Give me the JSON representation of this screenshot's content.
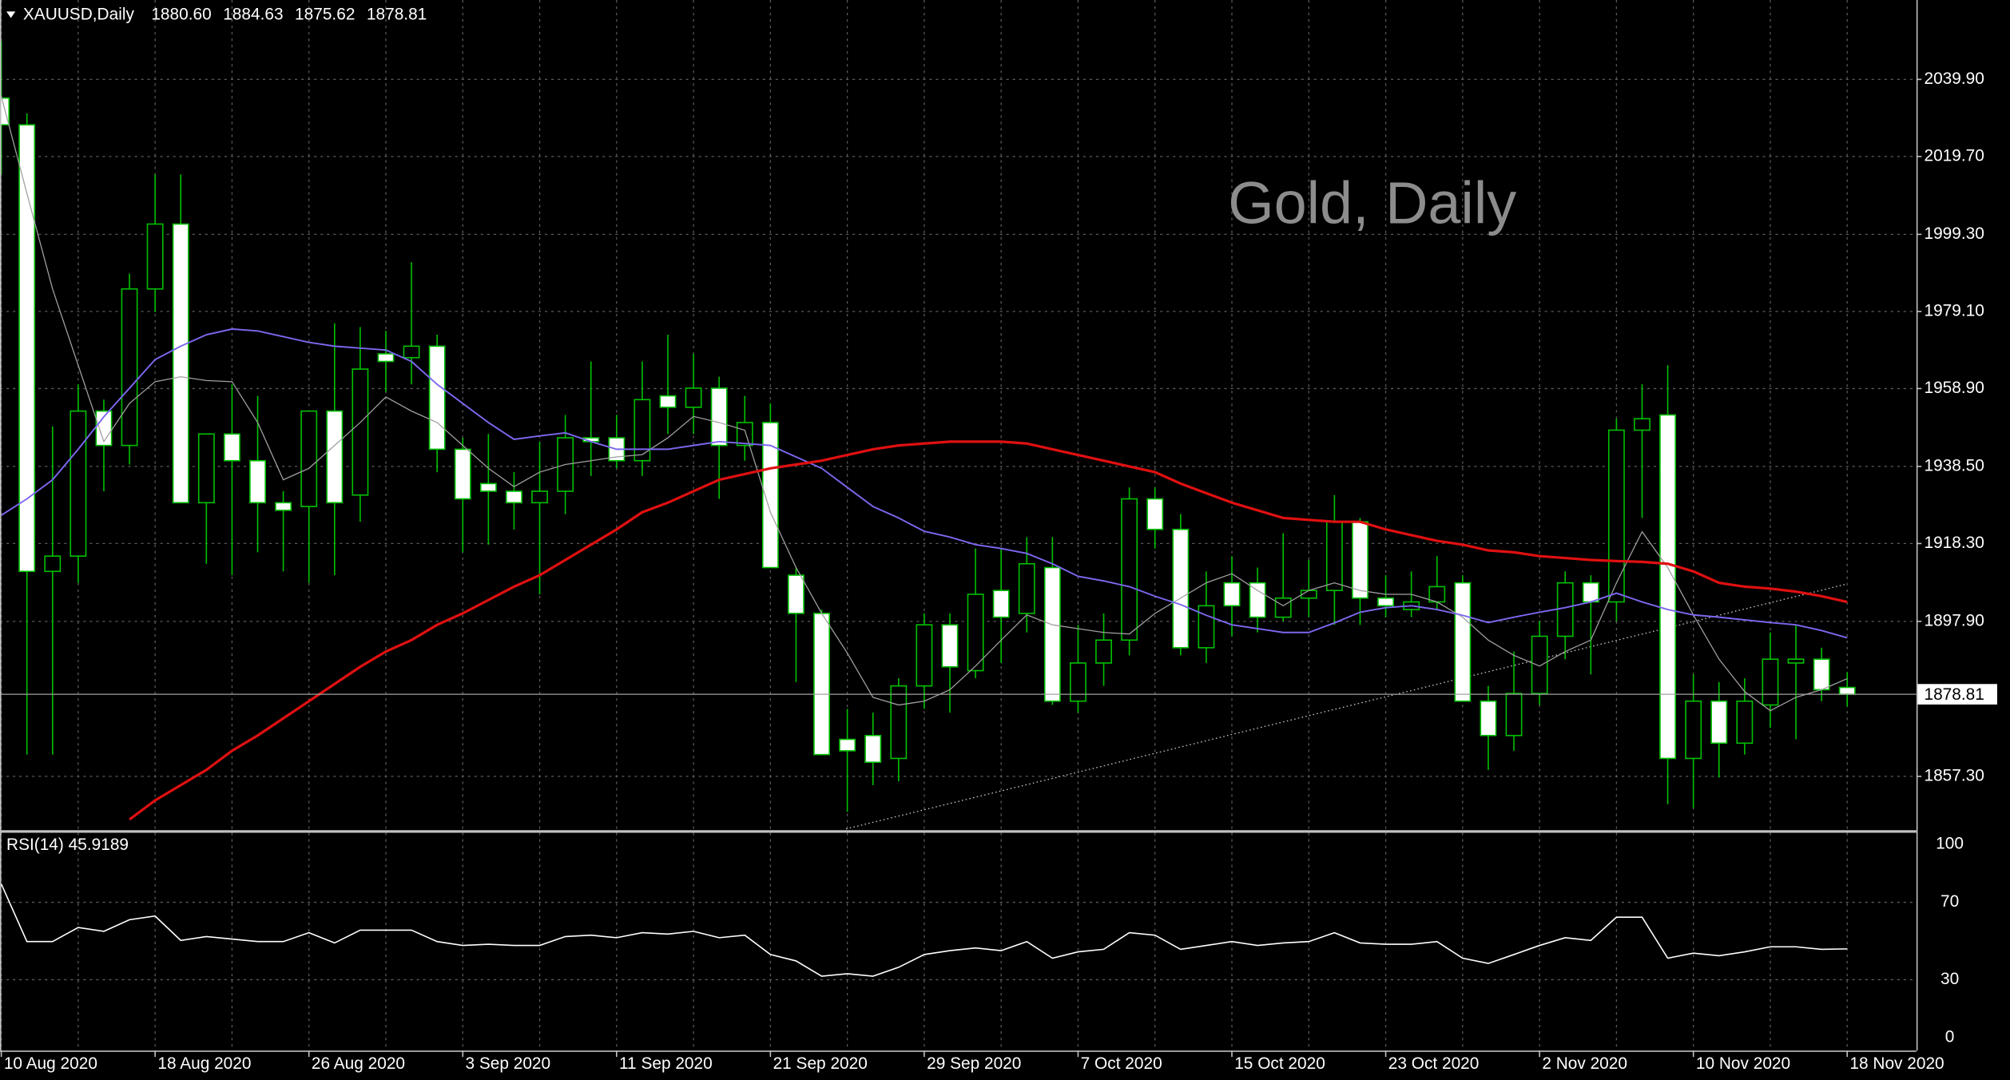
{
  "chart_data": [
    {
      "type": "candlestick",
      "header": "XAUUSD,Daily",
      "header_values": [
        "1880.60",
        "1884.63",
        "1875.62",
        "1878.81"
      ],
      "title": "Gold, Daily",
      "categories": [
        "10 Aug 2020",
        null,
        null,
        null,
        null,
        null,
        "18 Aug 2020",
        null,
        null,
        null,
        null,
        null,
        "26 Aug 2020",
        null,
        null,
        null,
        null,
        null,
        "3 Sep 2020",
        null,
        null,
        null,
        null,
        null,
        "11 Sep 2020",
        null,
        null,
        null,
        null,
        null,
        "21 Sep 2020",
        null,
        null,
        null,
        null,
        null,
        "29 Sep 2020",
        null,
        null,
        null,
        null,
        null,
        "7 Oct 2020",
        null,
        null,
        null,
        null,
        null,
        "15 Oct 2020",
        null,
        null,
        null,
        null,
        null,
        "23 Oct 2020",
        null,
        null,
        null,
        null,
        null,
        "2 Nov 2020",
        null,
        null,
        null,
        null,
        null,
        "10 Nov 2020",
        null,
        null,
        null,
        null,
        null,
        "18 Nov 2020"
      ],
      "open": [
        2035,
        2028,
        1911,
        1915,
        1953,
        1944,
        1985,
        2002,
        1929,
        1947,
        1940,
        1929,
        1928,
        1953,
        1931,
        1968,
        1967,
        1970,
        1943,
        1934,
        1932,
        1929,
        1932,
        1946,
        1946,
        1940,
        1957,
        1954,
        1959,
        1944,
        1950,
        1910,
        1900,
        1867,
        1868,
        1862,
        1881,
        1897,
        1885,
        1906,
        1900,
        1912,
        1877,
        1887,
        1893,
        1930,
        1922,
        1891,
        1908,
        1908,
        1899,
        1904,
        1906,
        1924,
        1904,
        1901,
        1903,
        1908,
        1877,
        1868,
        1879,
        1894,
        1908,
        1903,
        1948,
        1952,
        1862,
        1877,
        1866,
        1876,
        1887,
        1888,
        1880.6
      ],
      "high": [
        2050,
        2031,
        1949,
        1960,
        1956,
        1989,
        2015,
        2015,
        1947,
        1960,
        1957,
        1932,
        1953,
        1976,
        1975,
        1974,
        1992,
        1973,
        1946,
        1947,
        1937,
        1945,
        1952,
        1966,
        1952,
        1966,
        1973,
        1968,
        1962,
        1957,
        1955,
        1912,
        1901,
        1875,
        1874,
        1883,
        1900,
        1900,
        1917,
        1917,
        1920,
        1920,
        1897,
        1900,
        1933,
        1933,
        1926,
        1911,
        1915,
        1912,
        1921,
        1914,
        1931,
        1925,
        1910,
        1911,
        1915,
        1910,
        1881,
        1890,
        1898,
        1911,
        1910,
        1951,
        1960,
        1965,
        1884,
        1882,
        1883,
        1895,
        1897,
        1891,
        1884.63
      ],
      "low": [
        2015,
        1863,
        1863,
        1908,
        1932,
        1939,
        1979,
        1929,
        1913,
        1910,
        1916,
        1911,
        1908,
        1910,
        1924,
        1958,
        1960,
        1937,
        1916,
        1918,
        1922,
        1905,
        1926,
        1936,
        1938,
        1936,
        1947,
        1947,
        1930,
        1940,
        1912,
        1882,
        1863,
        1848,
        1855,
        1856,
        1875,
        1874,
        1883,
        1887,
        1895,
        1876,
        1874,
        1881,
        1889,
        1917,
        1889,
        1887,
        1894,
        1895,
        1898,
        1899,
        1897,
        1897,
        1899,
        1899,
        1901,
        1877,
        1859,
        1864,
        1876,
        1888,
        1884,
        1898,
        1925,
        1850,
        1849,
        1857,
        1863,
        1870,
        1867,
        1877,
        1875.62
      ],
      "close": [
        2028,
        1911,
        1915,
        1953,
        1944,
        1985,
        2002,
        1929,
        1947,
        1940,
        1929,
        1927,
        1953,
        1929,
        1964,
        1966,
        1970,
        1943,
        1930,
        1932,
        1929,
        1932,
        1946,
        1945,
        1940,
        1956,
        1954,
        1959,
        1944,
        1950,
        1912,
        1900,
        1863,
        1864,
        1861,
        1881,
        1897,
        1886,
        1905,
        1899,
        1913,
        1877,
        1887,
        1893,
        1930,
        1922,
        1891,
        1902,
        1902,
        1899,
        1904,
        1906,
        1924,
        1904,
        1902,
        1903,
        1907,
        1877,
        1868,
        1879,
        1894,
        1908,
        1903,
        1948,
        1951,
        1862,
        1877,
        1866,
        1877,
        1888,
        1888,
        1880,
        1878.81
      ],
      "series": [
        {
          "color": "#a0a0a0",
          "values": [
            2035.5,
            2010,
            1985,
            1965,
            1945,
            1955,
            1960.7,
            1962,
            1961,
            1960.7,
            1950,
            1935,
            1938,
            1944,
            1950,
            1956.7,
            1953,
            1950,
            1944,
            1938,
            1933.2,
            1937,
            1939,
            1940,
            1941,
            1941.6,
            1946,
            1951.6,
            1950,
            1948,
            1926.5,
            1912,
            1900,
            1889.6,
            1878,
            1876,
            1877,
            1880,
            1886.2,
            1893,
            1899.6,
            1897,
            1896,
            1895,
            1894.6,
            1900,
            1904,
            1908,
            1910.4,
            1906,
            1902,
            1906,
            1908,
            1906,
            1905,
            1905,
            1903,
            1899,
            1893,
            1889,
            1886.2,
            1890,
            1893,
            1908,
            1921.4,
            1912,
            1899.6,
            1888,
            1879.5,
            1874.5,
            1878,
            1880,
            1882.9
          ]
        },
        {
          "color": "#7b68ee",
          "values": [
            1925.7,
            1930,
            1935,
            1943,
            1951.5,
            1959,
            1966.5,
            1970,
            1973,
            1974.5,
            1974,
            1972.5,
            1971,
            1970,
            1969.5,
            1969,
            1966,
            1960,
            1955,
            1950,
            1945.6,
            1946.5,
            1947.3,
            1945,
            1943,
            1943,
            1943,
            1944,
            1945,
            1944.5,
            1944,
            1941,
            1938,
            1933,
            1928,
            1925,
            1921.5,
            1920,
            1918,
            1917,
            1915.7,
            1913,
            1909.7,
            1908.5,
            1907,
            1904.5,
            1902.3,
            1899.5,
            1897,
            1896,
            1895,
            1895,
            1897.5,
            1900.3,
            1901.5,
            1902,
            1901,
            1899.5,
            1897.6,
            1899,
            1900.3,
            1901.5,
            1903,
            1905.3,
            1903,
            1901,
            1899.6,
            1899,
            1898.3,
            1897.6,
            1897,
            1895.5,
            1893.6
          ]
        },
        {
          "color": "#e01010",
          "values": [
            null,
            null,
            null,
            null,
            null,
            1846,
            1851,
            1855,
            1859,
            1864,
            1868,
            1872.5,
            1877,
            1881.5,
            1886,
            1890,
            1893,
            1897,
            1900,
            1903.5,
            1907,
            1910,
            1914,
            1918,
            1922,
            1926.5,
            1929,
            1932,
            1935,
            1936.5,
            1938,
            1939,
            1940,
            1941.5,
            1943,
            1944,
            1944.5,
            1945,
            1945,
            1945,
            1944.5,
            1943,
            1941.5,
            1940,
            1938.5,
            1937,
            1934,
            1931.5,
            1929,
            1927,
            1925,
            1924.5,
            1924,
            1924,
            1922,
            1920.5,
            1919,
            1918,
            1916.5,
            1916,
            1915,
            1914.5,
            1914,
            1913.7,
            1913.5,
            1913,
            1911,
            1908,
            1907,
            1906.5,
            1905.7,
            1904.5,
            1903
          ]
        }
      ],
      "ylim": [
        1843.2,
        2060.7
      ],
      "yticks": [
        {
          "value": 2039.9,
          "label": "2039.90"
        },
        {
          "value": 2019.7,
          "label": "2019.70"
        },
        {
          "value": 1999.3,
          "label": "1999.30"
        },
        {
          "value": 1979.1,
          "label": "1979.10"
        },
        {
          "value": 1958.9,
          "label": "1958.90"
        },
        {
          "value": 1938.5,
          "label": "1938.50"
        },
        {
          "value": 1918.3,
          "label": "1918.30"
        },
        {
          "value": 1897.9,
          "label": "1897.90"
        },
        {
          "value": 1857.3,
          "label": "1857.30"
        }
      ],
      "grid": true,
      "up_color": "#000000",
      "down_color": "#ffffff",
      "wick_color": "#00c000"
    },
    {
      "type": "line",
      "label": "RSI(14) 45.9189",
      "values": [
        79.5,
        49.7,
        49.7,
        57,
        55,
        61,
        62.9,
        50.3,
        52.3,
        51,
        49.7,
        49.7,
        54.3,
        49,
        55.6,
        55.6,
        55.6,
        49.7,
        47.7,
        48.3,
        47.7,
        47.7,
        52.3,
        53,
        51.7,
        54.3,
        53.6,
        55,
        51.7,
        53,
        43,
        39.7,
        31.8,
        33.1,
        31.8,
        36.4,
        43,
        45,
        46.4,
        45,
        49.7,
        41.1,
        44.4,
        45.7,
        54.3,
        53,
        45.7,
        47.7,
        49.7,
        47.7,
        49,
        49.7,
        54.3,
        49,
        48.3,
        48.3,
        49.7,
        41.1,
        38.4,
        43,
        47.7,
        51.7,
        50.3,
        62.3,
        62.3,
        41.1,
        43.7,
        42.4,
        44.4,
        47,
        47,
        45.7,
        45.9189
      ],
      "ylim": [
        0,
        100
      ],
      "yticks": [
        100,
        70,
        30,
        0
      ],
      "grid": true,
      "color": "#ffffff"
    }
  ]
}
